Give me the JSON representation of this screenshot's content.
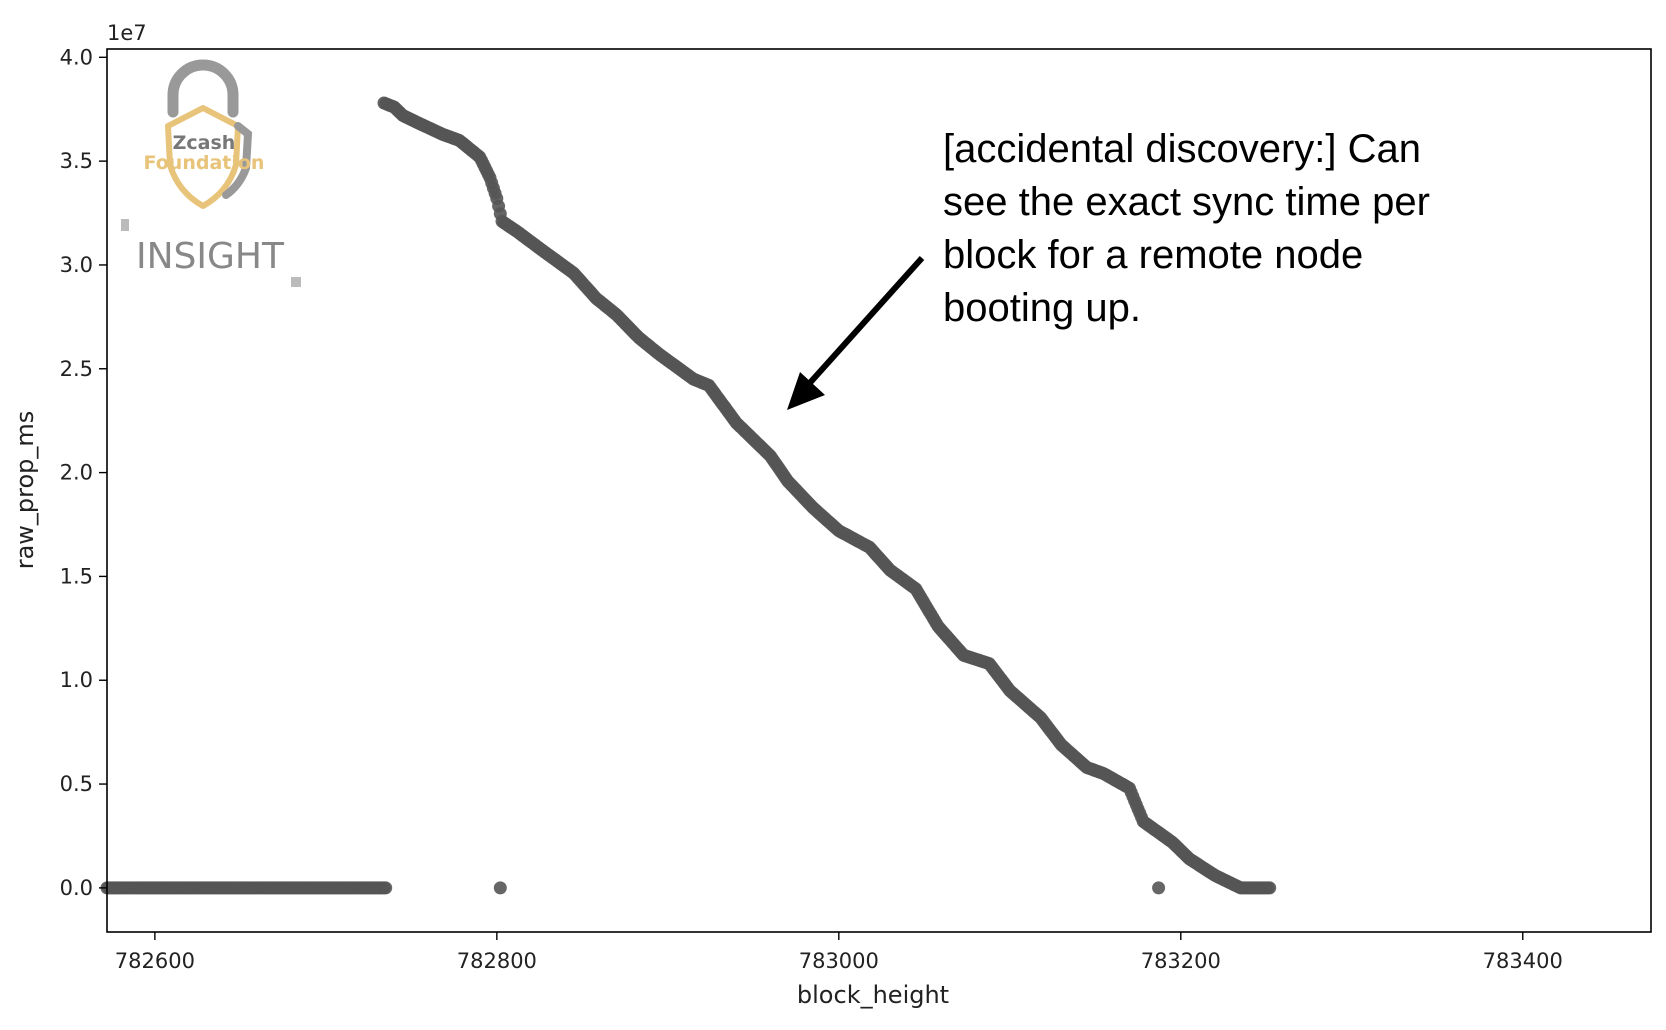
{
  "chart_data": {
    "type": "scatter",
    "xlabel": "block_height",
    "ylabel": "raw_prop_ms",
    "y_offset_text": "1e7",
    "xlim": [
      782572,
      783475
    ],
    "ylim": [
      -2125000,
      40400000
    ],
    "xticks": [
      782600,
      782800,
      783000,
      783200,
      783400
    ],
    "xtick_labels": [
      "782600",
      "782800",
      "783000",
      "783200",
      "783400"
    ],
    "yticks": [
      0,
      5000000,
      10000000,
      15000000,
      20000000,
      25000000,
      30000000,
      35000000,
      40000000
    ],
    "ytick_labels": [
      "0.0",
      "0.5",
      "1.0",
      "1.5",
      "2.0",
      "2.5",
      "3.0",
      "3.5",
      "4.0"
    ],
    "grid": false,
    "marker_color": "#555555",
    "series": [
      {
        "kind": "flat",
        "x_range": [
          782572,
          782735
        ],
        "y": 0
      },
      {
        "kind": "outliers",
        "points": [
          [
            782802,
            0
          ],
          [
            783187,
            0
          ]
        ]
      },
      {
        "kind": "descending",
        "points": [
          [
            782734,
            37800000
          ],
          [
            782740,
            37600000
          ],
          [
            782745,
            37200000
          ],
          [
            782755,
            36800000
          ],
          [
            782768,
            36300000
          ],
          [
            782778,
            36000000
          ],
          [
            782790,
            35200000
          ],
          [
            782796,
            34200000
          ],
          [
            782800,
            33200000
          ],
          [
            782803,
            32100000
          ],
          [
            782812,
            31600000
          ],
          [
            782825,
            30800000
          ],
          [
            782845,
            29600000
          ],
          [
            782858,
            28400000
          ],
          [
            782870,
            27600000
          ],
          [
            782883,
            26500000
          ],
          [
            782895,
            25700000
          ],
          [
            782915,
            24500000
          ],
          [
            782924,
            24200000
          ],
          [
            782940,
            22400000
          ],
          [
            782960,
            20800000
          ],
          [
            782970,
            19600000
          ],
          [
            782985,
            18300000
          ],
          [
            783000,
            17200000
          ],
          [
            783018,
            16400000
          ],
          [
            783030,
            15300000
          ],
          [
            783045,
            14400000
          ],
          [
            783058,
            12600000
          ],
          [
            783073,
            11200000
          ],
          [
            783088,
            10800000
          ],
          [
            783100,
            9500000
          ],
          [
            783118,
            8200000
          ],
          [
            783130,
            6900000
          ],
          [
            783145,
            5800000
          ],
          [
            783155,
            5500000
          ],
          [
            783170,
            4800000
          ],
          [
            783178,
            3200000
          ],
          [
            783195,
            2200000
          ],
          [
            783205,
            1400000
          ],
          [
            783220,
            600000
          ],
          [
            783235,
            0
          ],
          [
            783252,
            0
          ]
        ]
      }
    ],
    "annotation": {
      "lines": [
        "[accidental discovery:] Can",
        "see the exact sync time per",
        "block for a remote node",
        "booting up."
      ]
    },
    "watermark": {
      "logo_text_1": "Zcash",
      "logo_text_2": "Foundation",
      "brand_text": "INSIGHT",
      "colors": {
        "lock": "#999999",
        "shield": "#e8c37a",
        "zcash": "#777777",
        "brand": "#888888"
      }
    }
  }
}
